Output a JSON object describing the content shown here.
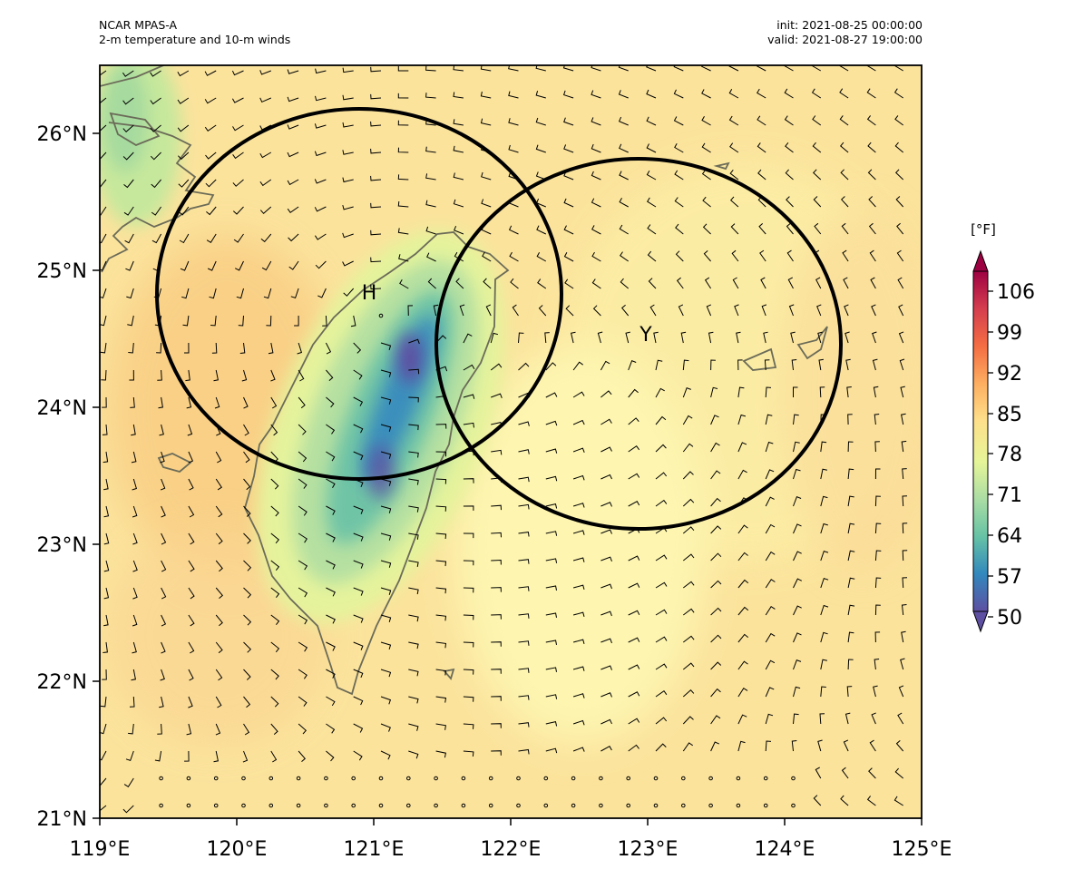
{
  "header": {
    "model": "NCAR MPAS-A",
    "description": "2-m temperature and 10-m winds",
    "init": "init: 2021-08-25 00:00:00",
    "valid": "valid: 2021-08-27 19:00:00"
  },
  "map": {
    "lon_range": [
      119,
      125
    ],
    "lat_range": [
      21,
      26.5
    ],
    "x_ticks": [
      "119°E",
      "120°E",
      "121°E",
      "122°E",
      "123°E",
      "124°E",
      "125°E"
    ],
    "y_ticks": [
      "21°N",
      "22°N",
      "23°N",
      "24°N",
      "25°N",
      "26°N"
    ]
  },
  "colorbar": {
    "unit": "[°F]",
    "ticks": [
      "50",
      "57",
      "64",
      "71",
      "78",
      "85",
      "92",
      "99",
      "106"
    ],
    "colors": [
      "#5e4fa2",
      "#3288bd",
      "#66c2a5",
      "#abdda4",
      "#e6f598",
      "#fee08b",
      "#fdae61",
      "#f46d43",
      "#d53e4f",
      "#9e0142"
    ]
  },
  "storms": [
    {
      "label": "H",
      "center_lon": 120.94,
      "center_lat": 24.83
    },
    {
      "label": "Y",
      "center_lon": 122.96,
      "center_lat": 24.46
    }
  ]
}
